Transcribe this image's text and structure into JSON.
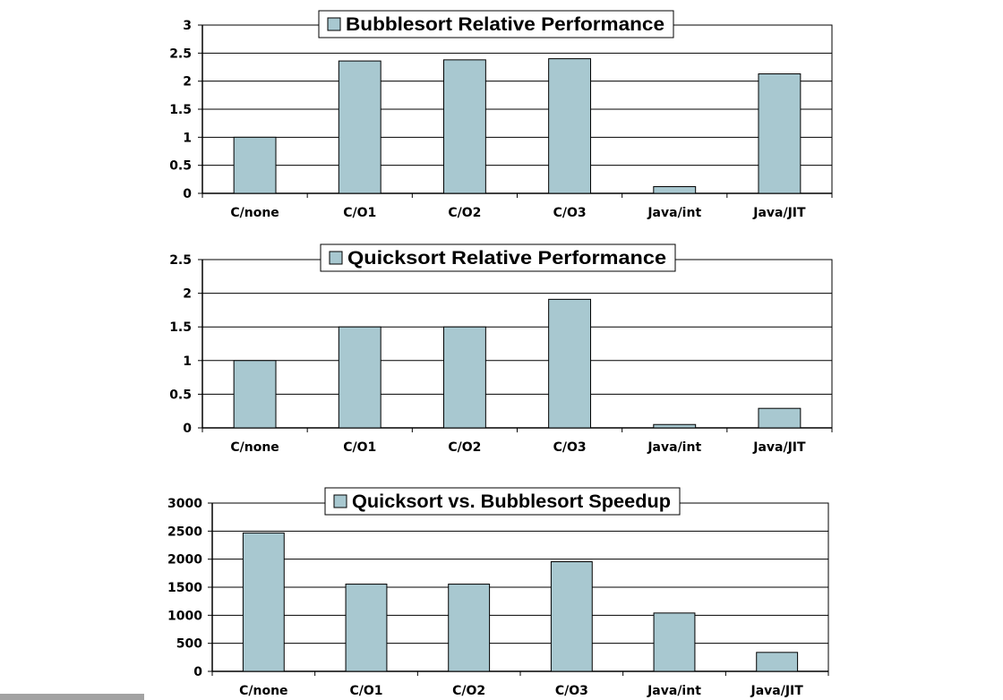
{
  "chart_data": [
    {
      "type": "bar",
      "title": "Bubblesort Relative Performance",
      "categories": [
        "C/none",
        "C/O1",
        "C/O2",
        "C/O3",
        "Java/int",
        "Java/JIT"
      ],
      "values": [
        1,
        2.36,
        2.38,
        2.4,
        0.12,
        2.13
      ],
      "ylim": [
        0,
        3
      ],
      "yticks": [
        "0",
        "0.5",
        "1",
        "1.5",
        "2",
        "2.5",
        "3"
      ],
      "ytick_values": [
        0,
        0.5,
        1,
        1.5,
        2,
        2.5,
        3
      ],
      "grid": true,
      "legend": "top"
    },
    {
      "type": "bar",
      "title": "Quicksort Relative Performance",
      "categories": [
        "C/none",
        "C/O1",
        "C/O2",
        "C/O3",
        "Java/int",
        "Java/JIT"
      ],
      "values": [
        1,
        1.5,
        1.5,
        1.91,
        0.05,
        0.29
      ],
      "ylim": [
        0,
        2.5
      ],
      "yticks": [
        "0",
        "0.5",
        "1",
        "1.5",
        "2",
        "2.5"
      ],
      "ytick_values": [
        0,
        0.5,
        1,
        1.5,
        2,
        2.5
      ],
      "grid": true,
      "legend": "top"
    },
    {
      "type": "bar",
      "title": "Quicksort vs. Bubblesort Speedup",
      "categories": [
        "C/none",
        "C/O1",
        "C/O2",
        "C/O3",
        "Java/int",
        "Java/JIT"
      ],
      "values": [
        2468,
        1555,
        1555,
        1955,
        1040,
        338
      ],
      "ylim": [
        0,
        3000
      ],
      "yticks": [
        "0",
        "500",
        "1000",
        "1500",
        "2000",
        "2500",
        "3000"
      ],
      "ytick_values": [
        0,
        500,
        1000,
        1500,
        2000,
        2500,
        3000
      ],
      "grid": true,
      "legend": "top"
    }
  ],
  "colors": {
    "bar": "#a8c8d0",
    "stroke": "#000000",
    "background": "#ffffff",
    "footer_strip": "#a3a3a3"
  }
}
